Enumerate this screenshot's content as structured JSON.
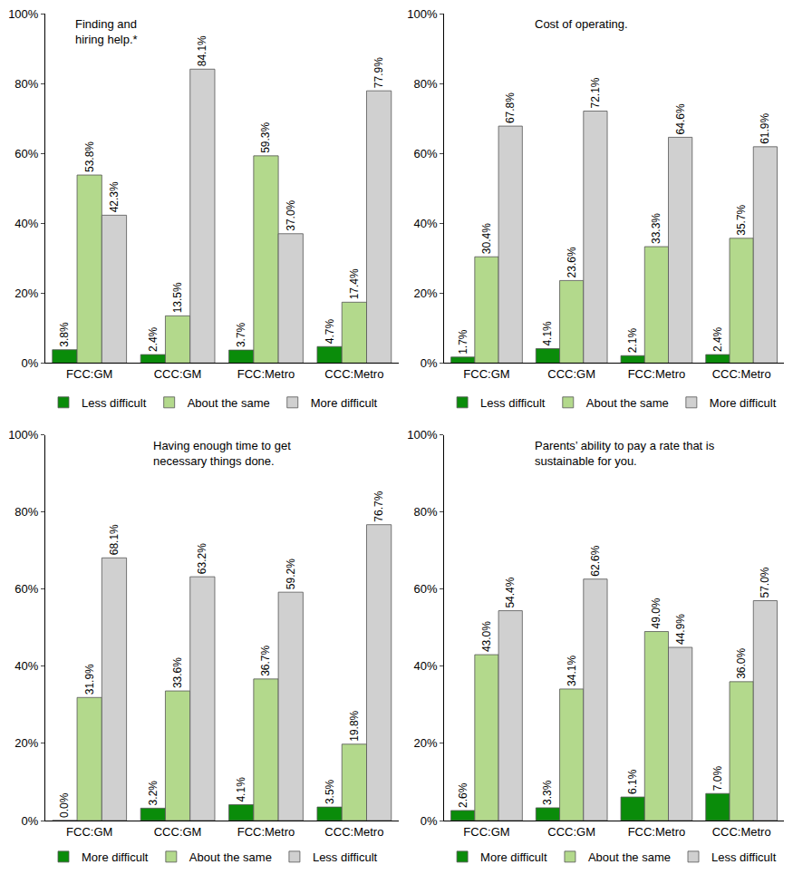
{
  "chart_data": [
    {
      "type": "bar",
      "title": "Finding and\nhiring help.*",
      "categories": [
        "FCC:GM",
        "CCC:GM",
        "FCC:Metro",
        "CCC:Metro"
      ],
      "series": [
        {
          "name": "Less difficult",
          "color": "#0a8c0a",
          "values": [
            3.8,
            2.4,
            3.7,
            4.7
          ],
          "value_labels": [
            "3.8%",
            "2.4%",
            "3.7%",
            "4.7%"
          ]
        },
        {
          "name": "About the same",
          "color": "#b3d98c",
          "values": [
            53.8,
            13.5,
            59.3,
            17.4
          ],
          "value_labels": [
            "53.8%",
            "13.5%",
            "59.3%",
            "17.4%"
          ]
        },
        {
          "name": "More difficult",
          "color": "#d0d0d0",
          "values": [
            42.3,
            84.1,
            37.0,
            77.9
          ],
          "value_labels": [
            "42.3%",
            "84.1%",
            "37.0%",
            "77.9%"
          ]
        }
      ],
      "ylim": [
        0,
        100
      ],
      "yticks": [
        {
          "value": 0,
          "label": "0%"
        },
        {
          "value": 20,
          "label": "20%"
        },
        {
          "value": 40,
          "label": "40%"
        },
        {
          "value": 60,
          "label": "60%"
        },
        {
          "value": 80,
          "label": "80%"
        },
        {
          "value": 100,
          "label": "100%"
        }
      ],
      "grid": false,
      "legend": "bottom",
      "data_labels": true
    },
    {
      "type": "bar",
      "title": "Cost of operating.",
      "categories": [
        "FCC:GM",
        "CCC:GM",
        "FCC:Metro",
        "CCC:Metro"
      ],
      "series": [
        {
          "name": "Less difficult",
          "color": "#0a8c0a",
          "values": [
            1.7,
            4.1,
            2.1,
            2.4
          ],
          "value_labels": [
            "1.7%",
            "4.1%",
            "2.1%",
            "2.4%"
          ]
        },
        {
          "name": "About the same",
          "color": "#b3d98c",
          "values": [
            30.4,
            23.6,
            33.3,
            35.7
          ],
          "value_labels": [
            "30.4%",
            "23.6%",
            "33.3%",
            "35.7%"
          ]
        },
        {
          "name": "More difficult",
          "color": "#d0d0d0",
          "values": [
            67.8,
            72.1,
            64.6,
            61.9
          ],
          "value_labels": [
            "67.8%",
            "72.1%",
            "64.6%",
            "61.9%"
          ]
        }
      ],
      "ylim": [
        0,
        100
      ],
      "yticks": [
        {
          "value": 0,
          "label": "0%"
        },
        {
          "value": 20,
          "label": "20%"
        },
        {
          "value": 40,
          "label": "40%"
        },
        {
          "value": 60,
          "label": "60%"
        },
        {
          "value": 80,
          "label": "80%"
        },
        {
          "value": 100,
          "label": "100%"
        }
      ],
      "grid": false,
      "legend": "bottom",
      "data_labels": true
    },
    {
      "type": "bar",
      "title": "Having enough time to get\nnecessary things done.",
      "categories": [
        "FCC:GM",
        "CCC:GM",
        "FCC:Metro",
        "CCC:Metro"
      ],
      "series": [
        {
          "name": "More difficult",
          "color": "#0a8c0a",
          "values": [
            0.0,
            3.2,
            4.1,
            3.5
          ],
          "value_labels": [
            "0.0%",
            "3.2%",
            "4.1%",
            "3.5%"
          ]
        },
        {
          "name": "About the same",
          "color": "#b3d98c",
          "values": [
            31.9,
            33.6,
            36.7,
            19.8
          ],
          "value_labels": [
            "31.9%",
            "33.6%",
            "36.7%",
            "19.8%"
          ]
        },
        {
          "name": "Less difficult",
          "color": "#d0d0d0",
          "values": [
            68.1,
            63.2,
            59.2,
            76.7
          ],
          "value_labels": [
            "68.1%",
            "63.2%",
            "59.2%",
            "76.7%"
          ]
        }
      ],
      "ylim": [
        0,
        100
      ],
      "yticks": [
        {
          "value": 0,
          "label": "0%"
        },
        {
          "value": 20,
          "label": "20%"
        },
        {
          "value": 40,
          "label": "40%"
        },
        {
          "value": 60,
          "label": "60%"
        },
        {
          "value": 80,
          "label": "80%"
        },
        {
          "value": 100,
          "label": "100%"
        }
      ],
      "grid": false,
      "legend": "bottom",
      "data_labels": true
    },
    {
      "type": "bar",
      "title": "Parents’ ability to pay a rate that is\nsustainable for you.",
      "categories": [
        "FCC:GM",
        "CCC:GM",
        "FCC:Metro",
        "CCC:Metro"
      ],
      "series": [
        {
          "name": "More difficult",
          "color": "#0a8c0a",
          "values": [
            2.6,
            3.3,
            6.1,
            7.0
          ],
          "value_labels": [
            "2.6%",
            "3.3%",
            "6.1%",
            "7.0%"
          ]
        },
        {
          "name": "About the same",
          "color": "#b3d98c",
          "values": [
            43.0,
            34.1,
            49.0,
            36.0
          ],
          "value_labels": [
            "43.0%",
            "34.1%",
            "49.0%",
            "36.0%"
          ]
        },
        {
          "name": "Less difficult",
          "color": "#d0d0d0",
          "values": [
            54.4,
            62.6,
            44.9,
            57.0
          ],
          "value_labels": [
            "54.4%",
            "62.6%",
            "44.9%",
            "57.0%"
          ]
        }
      ],
      "ylim": [
        0,
        100
      ],
      "yticks": [
        {
          "value": 0,
          "label": "0%"
        },
        {
          "value": 20,
          "label": "20%"
        },
        {
          "value": 40,
          "label": "40%"
        },
        {
          "value": 60,
          "label": "60%"
        },
        {
          "value": 80,
          "label": "80%"
        },
        {
          "value": 100,
          "label": "100%"
        }
      ],
      "grid": false,
      "legend": "bottom",
      "data_labels": true
    }
  ]
}
